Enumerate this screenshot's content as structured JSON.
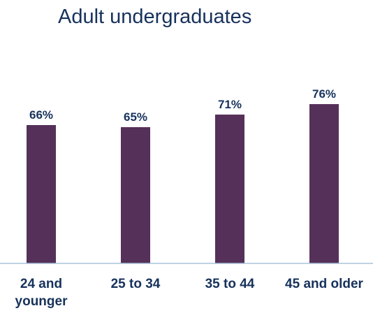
{
  "chart_data": {
    "type": "bar",
    "title": "Adult undergraduates",
    "categories": [
      [
        "24 and",
        "younger"
      ],
      [
        "25 to 34"
      ],
      [
        "35 to 44"
      ],
      [
        "45 and older"
      ]
    ],
    "values": [
      66,
      65,
      71,
      76
    ],
    "value_labels": [
      "66%",
      "65%",
      "71%",
      "76%"
    ],
    "ylim": [
      0,
      100
    ],
    "grid": false,
    "legend": "none",
    "bar_color": "#553059",
    "axis_color": "#a9c4d9",
    "text_color": "#17325c"
  }
}
